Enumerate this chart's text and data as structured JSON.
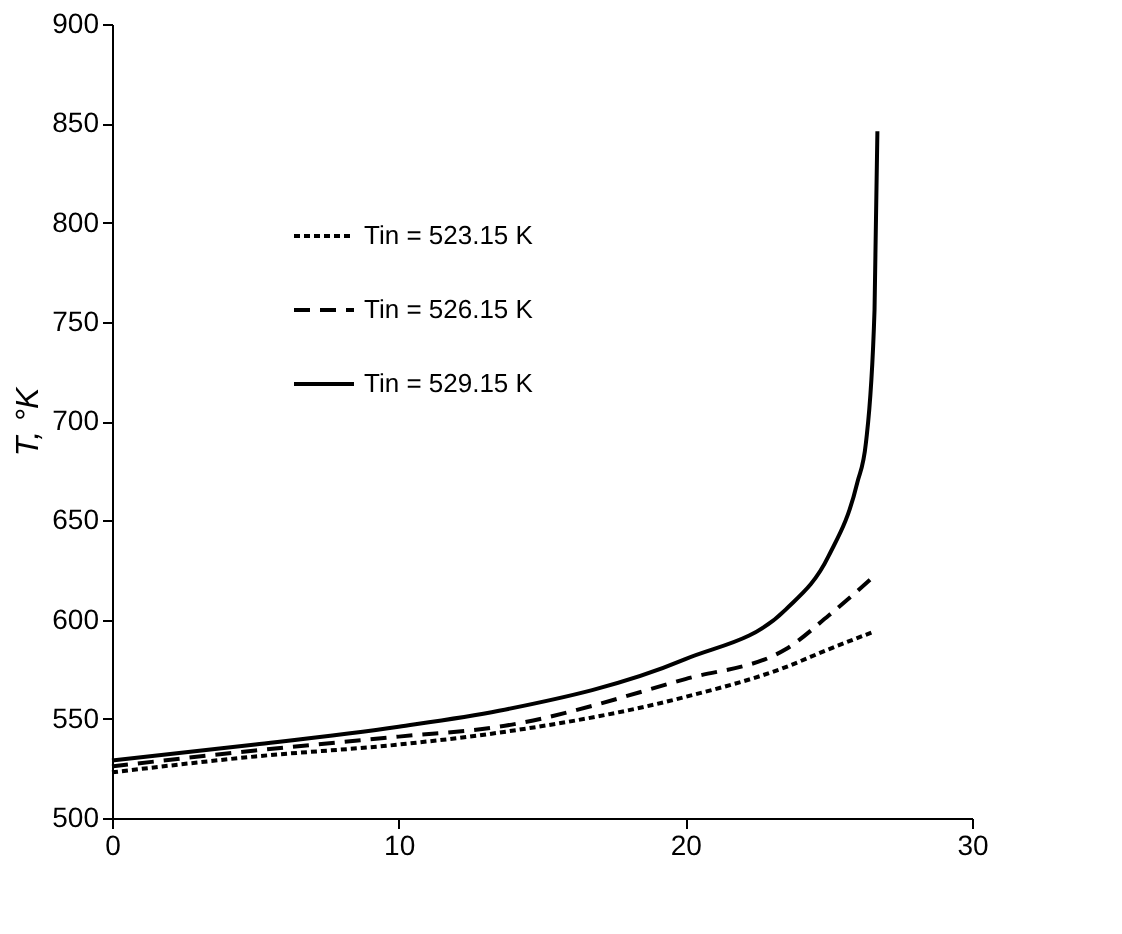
{
  "chart_data": {
    "type": "line",
    "ylabel": "T, °K",
    "xlim": [
      0,
      30
    ],
    "xticks": [
      0,
      10,
      20,
      30
    ],
    "ylim": [
      500,
      900
    ],
    "yticks": [
      500,
      550,
      600,
      650,
      700,
      750,
      800,
      850,
      900
    ],
    "grid": false,
    "legend": "top left",
    "marker": "none",
    "series": [
      {
        "name": "Tin = 523.15 K",
        "color": "#000000",
        "line_style": "dotted",
        "x": [
          0,
          5,
          10,
          13.5,
          20,
          23.5,
          25,
          26.6
        ],
        "values": [
          523,
          531,
          537,
          543,
          561,
          576,
          585,
          594
        ]
      },
      {
        "name": "Tin = 526.15 K",
        "color": "#000000",
        "line_style": "dashed",
        "x": [
          0,
          5,
          10,
          13.5,
          20,
          23.5,
          25,
          26.6
        ],
        "values": [
          526,
          534,
          541,
          546,
          570,
          585,
          602,
          622
        ]
      },
      {
        "name": "Tin = 529.15 K",
        "color": "#000000",
        "line_style": "solid",
        "x": [
          0,
          5,
          10,
          13.5,
          20,
          23.5,
          25,
          26,
          26.3,
          26.6,
          26.7
        ],
        "values": [
          529,
          537,
          546,
          554,
          580,
          605,
          632,
          669,
          689,
          756,
          846
        ]
      }
    ]
  }
}
